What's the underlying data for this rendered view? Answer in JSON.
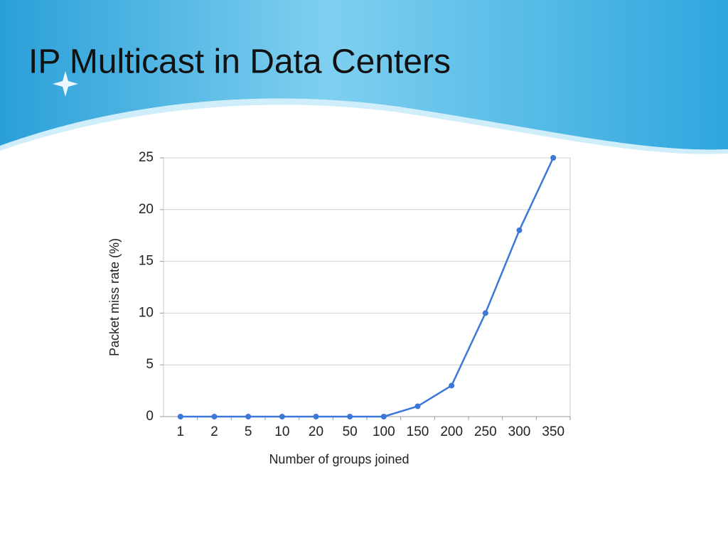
{
  "slide": {
    "title": "IP Multicast in Data Centers"
  },
  "chart_data": {
    "type": "line",
    "x_label": "Number of groups joined",
    "y_label": "Packet miss rate (%)",
    "categories": [
      "1",
      "2",
      "5",
      "10",
      "20",
      "50",
      "100",
      "150",
      "200",
      "250",
      "300",
      "350"
    ],
    "values": [
      0,
      0,
      0,
      0,
      0,
      0,
      0,
      1,
      3,
      10,
      18,
      25
    ],
    "color": "#3c78d8",
    "ylim": [
      0,
      25
    ],
    "yticks": [
      0,
      5,
      10,
      15,
      20,
      25
    ],
    "grid": true
  }
}
